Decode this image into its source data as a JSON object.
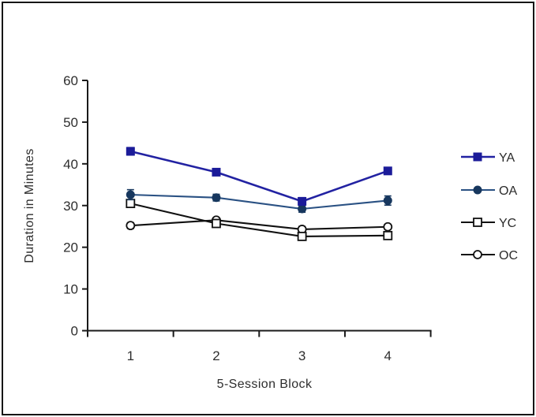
{
  "window": {
    "background_color": "#ffffff",
    "border_color": "#161616"
  },
  "chart_data": {
    "type": "line",
    "title": "",
    "xlabel": "5-Session Block",
    "ylabel": "Duration in Minutes",
    "x_categories": [
      "1",
      "2",
      "3",
      "4"
    ],
    "y_ticks": [
      0,
      10,
      20,
      30,
      40,
      50,
      60
    ],
    "ylim": [
      0,
      60
    ],
    "grid": false,
    "legend_position": "right",
    "axis_color": "#1a1a1a",
    "error_bars": true,
    "series": [
      {
        "name": "OC",
        "values": [
          25.2,
          26.5,
          24.3,
          24.9
        ],
        "errors": [
          0.7,
          0.6,
          0.7,
          0.6
        ],
        "line_color": "#111111",
        "marker": "open-circle",
        "marker_fill": "#ffffff",
        "marker_stroke": "#111111"
      },
      {
        "name": "YC",
        "values": [
          30.5,
          25.7,
          22.6,
          22.8
        ],
        "errors": [
          0.9,
          0.8,
          0.8,
          0.6
        ],
        "line_color": "#111111",
        "marker": "open-square",
        "marker_fill": "#ffffff",
        "marker_stroke": "#111111"
      },
      {
        "name": "OA",
        "values": [
          32.6,
          31.9,
          29.2,
          31.2
        ],
        "errors": [
          1.2,
          0.8,
          0.8,
          1.1
        ],
        "line_color": "#2a5183",
        "marker": "filled-circle",
        "marker_fill": "#17375e",
        "marker_stroke": "#17375e"
      },
      {
        "name": "YA",
        "values": [
          43.0,
          38.0,
          31.0,
          38.3
        ],
        "errors": [
          0.9,
          0.6,
          0.9,
          0.8
        ],
        "line_color": "#2222a2",
        "marker": "filled-square",
        "marker_fill": "#1b1b99",
        "marker_stroke": "#1b1b99"
      }
    ],
    "legend_order": [
      "YA",
      "OA",
      "YC",
      "OC"
    ]
  }
}
